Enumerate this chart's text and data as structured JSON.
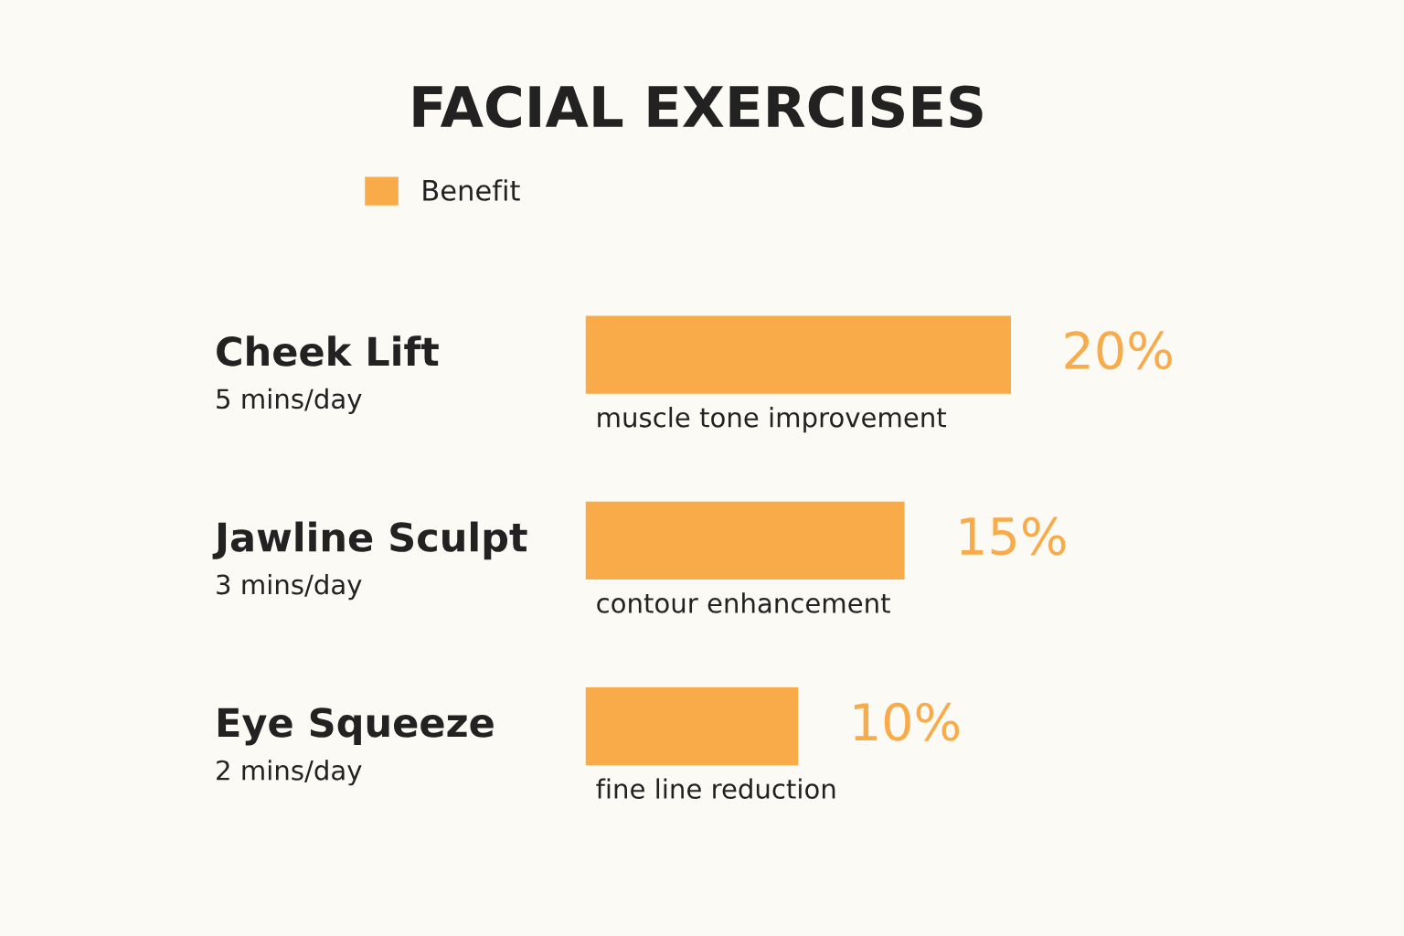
{
  "chart_data": {
    "type": "bar",
    "orientation": "horizontal",
    "title": "FACIAL EXERCISES",
    "categories": [
      "Cheek Lift\n5 mins/day",
      "Jawline Sculpt\n3 mins/day",
      "Eye Squeeze\n2 mins/day"
    ],
    "series": [
      {
        "name": "Benefit",
        "color": "#f9ab4a",
        "values": [
          20,
          15,
          10
        ],
        "value_labels": [
          "20%",
          "15%",
          "10%"
        ]
      }
    ],
    "annotations": [
      "muscle tone improvement",
      "contour enhancement",
      "fine line reduction"
    ],
    "legend": "top left"
  }
}
